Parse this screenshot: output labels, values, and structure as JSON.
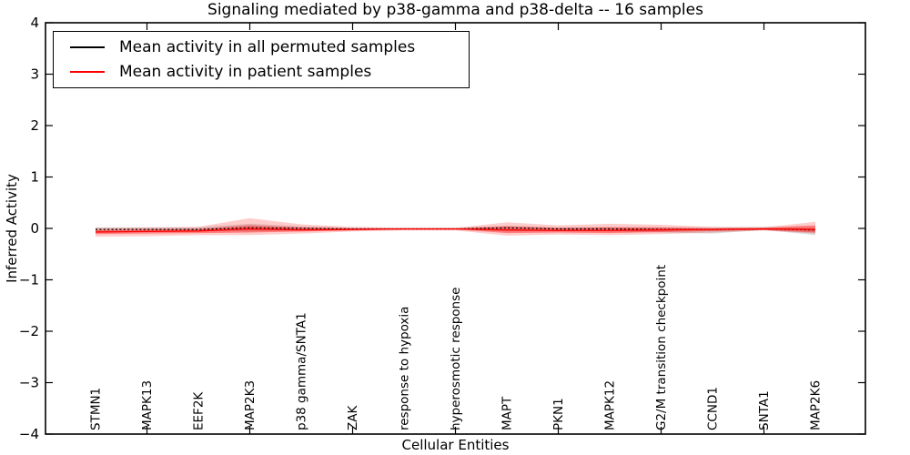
{
  "chart_data": {
    "type": "line",
    "title": "Signaling mediated by p38-gamma and p38-delta -- 16 samples",
    "xlabel": "Cellular Entities",
    "ylabel": "Inferred Activity",
    "ylim": [
      -4,
      4
    ],
    "yticks": [
      4,
      3,
      2,
      1,
      0,
      -1,
      -2,
      -3,
      -4
    ],
    "ytick_labels": [
      "4",
      "3",
      "2",
      "1",
      "0",
      "−1",
      "−2",
      "−3",
      "−4"
    ],
    "grid": false,
    "legend_position": "upper left",
    "categories": [
      "STMN1",
      "MAPK13",
      "EEF2K",
      "MAP2K3",
      "p38 gamma/SNTA1",
      "ZAK",
      "response to hypoxia",
      "hyperosmotic response",
      "MAPT",
      "PKN1",
      "MAPK12",
      "G2/M transition checkpoint",
      "CCND1",
      "SNTA1",
      "MAP2K6"
    ],
    "series": [
      {
        "name": "Mean activity in all permuted samples",
        "color": "#000000",
        "line_style": "dashed",
        "values": [
          -0.02,
          -0.02,
          -0.02,
          0.01,
          0.0,
          -0.01,
          -0.01,
          -0.01,
          0.01,
          -0.01,
          -0.01,
          -0.02,
          -0.02,
          -0.01,
          -0.03
        ]
      },
      {
        "name": "Mean activity in patient samples",
        "color": "#ff0000",
        "line_style": "solid",
        "values": [
          -0.07,
          -0.06,
          -0.05,
          -0.01,
          -0.03,
          -0.02,
          -0.01,
          -0.01,
          -0.03,
          -0.04,
          -0.04,
          -0.03,
          -0.02,
          -0.01,
          -0.02
        ]
      }
    ],
    "bands": [
      {
        "name": "permuted-samples-band",
        "color": "#999999",
        "opacity": 0.35,
        "upper": [
          0.02,
          0.02,
          0.02,
          0.09,
          0.04,
          0.01,
          0.01,
          0.01,
          0.05,
          0.02,
          0.03,
          0.02,
          0.02,
          0.03,
          0.02
        ],
        "lower": [
          -0.07,
          -0.06,
          -0.05,
          -0.06,
          -0.04,
          -0.03,
          -0.02,
          -0.02,
          -0.06,
          -0.05,
          -0.06,
          -0.08,
          -0.1,
          -0.03,
          -0.13
        ]
      },
      {
        "name": "patient-samples-band-outer",
        "color": "#ff0000",
        "opacity": 0.2,
        "upper": [
          0.01,
          0.02,
          0.03,
          0.2,
          0.08,
          0.03,
          0.01,
          0.01,
          0.12,
          0.06,
          0.09,
          0.07,
          0.03,
          0.02,
          0.13
        ],
        "lower": [
          -0.16,
          -0.15,
          -0.13,
          -0.13,
          -0.1,
          -0.06,
          -0.04,
          -0.04,
          -0.14,
          -0.12,
          -0.13,
          -0.11,
          -0.08,
          -0.04,
          -0.1
        ]
      },
      {
        "name": "patient-samples-band-inner",
        "color": "#ff0000",
        "opacity": 0.38,
        "upper": [
          -0.03,
          -0.02,
          -0.01,
          0.06,
          0.02,
          0.0,
          0.0,
          0.0,
          0.04,
          0.01,
          0.02,
          0.02,
          0.0,
          0.01,
          0.06
        ],
        "lower": [
          -0.11,
          -0.1,
          -0.09,
          -0.08,
          -0.06,
          -0.04,
          -0.02,
          -0.02,
          -0.09,
          -0.08,
          -0.09,
          -0.07,
          -0.05,
          -0.03,
          -0.08
        ]
      }
    ]
  }
}
